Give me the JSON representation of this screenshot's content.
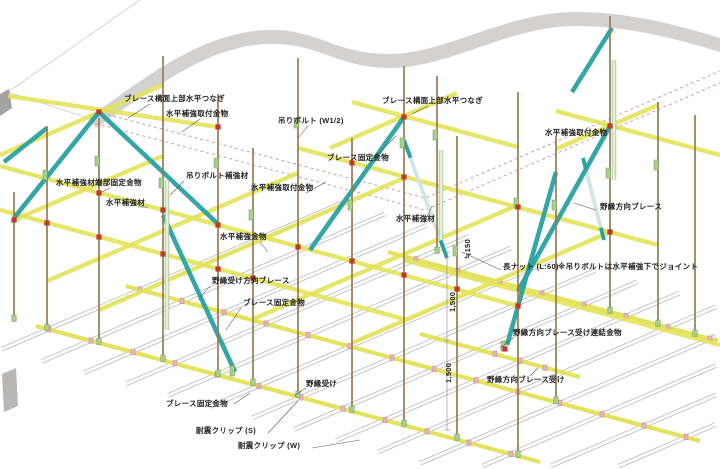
{
  "diagram": {
    "labels": [
      {
        "id": "brace-top-tie-left",
        "text": "ブレース構面上部水平つなぎ"
      },
      {
        "id": "horiz-reinf-fitting-topleft",
        "text": "水平補強取付金物"
      },
      {
        "id": "hanging-bolt",
        "text": "吊りボルト (W1/2)"
      },
      {
        "id": "brace-top-tie-right",
        "text": "ブレース構面上部水平つなぎ"
      },
      {
        "id": "brace-fix-top",
        "text": "ブレース固定金物"
      },
      {
        "id": "bolt-reinforcement",
        "text": "吊りボルト補強材"
      },
      {
        "id": "horiz-reinf-fitting-center",
        "text": "水平補強取付金物"
      },
      {
        "id": "horiz-reinf-end-fix",
        "text": "水平補強材端部固定金物"
      },
      {
        "id": "horiz-reinf-left",
        "text": "水平補強材"
      },
      {
        "id": "horiz-reinf-fitting-right",
        "text": "水平補強取付金物"
      },
      {
        "id": "horiz-reinf-hardware",
        "text": "水平補強金物"
      },
      {
        "id": "horiz-reinf-center",
        "text": "水平補強材"
      },
      {
        "id": "joist-dir-brace",
        "text": "野縁方向ブレース"
      },
      {
        "id": "carrier-dir-brace",
        "text": "野縁受け方向ブレース"
      },
      {
        "id": "brace-fix-mid",
        "text": "ブレース固定金物"
      },
      {
        "id": "long-nut",
        "text": "長ナット (L:60)"
      },
      {
        "id": "joint-note",
        "text": "※吊りボルトは水平補強下でジョイント"
      },
      {
        "id": "dim-150",
        "text": "≒150"
      },
      {
        "id": "dim-1500-upper",
        "text": "1,500"
      },
      {
        "id": "dim-1500-lower",
        "text": "1,500"
      },
      {
        "id": "joist-brace-receiver-connector",
        "text": "野縁方向ブレース受け連結金物"
      },
      {
        "id": "joist-brace-receiver",
        "text": "野縁方向ブレース受け"
      },
      {
        "id": "joist-receiver",
        "text": "野縁受け"
      },
      {
        "id": "brace-fix-bottom",
        "text": "ブレース固定金物"
      },
      {
        "id": "seismic-clip-s",
        "text": "耐震クリップ (S)"
      },
      {
        "id": "seismic-clip-w",
        "text": "耐震クリップ (W)"
      }
    ],
    "colors": {
      "member_yellow": "#e2e257",
      "brace_teal": "#2aa1a3",
      "pale_brace": "#cfe7e0",
      "bolt_brown": "#9a7a50",
      "node_red": "#c0392b",
      "clip_pink": "#e7b3c3",
      "clip_pink_edge": "#c97f96",
      "hanger_green": "#a9cf8f",
      "hanger_green_edge": "#6b9a53",
      "slab_gray": "#d4d2d1",
      "slab_edge_dark": "#a5a3a1",
      "channel_gray": "#c2c0be",
      "dashed_pink": "#d69090",
      "leader_gray": "#555555"
    }
  }
}
